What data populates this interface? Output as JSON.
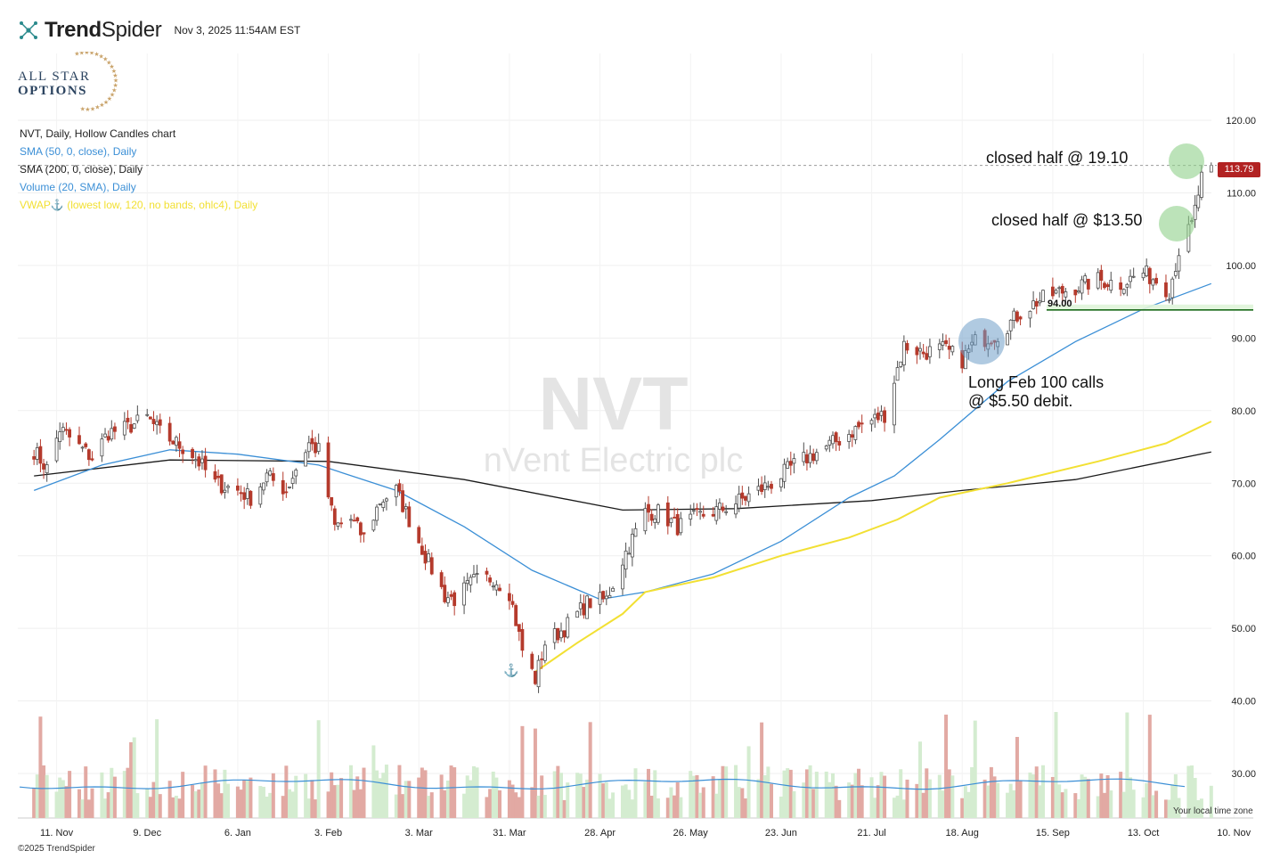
{
  "brand": {
    "name_bold": "Trend",
    "name_rest": "Spider",
    "timestamp": "Nov 3, 2025 11:54AM EST"
  },
  "badge": {
    "line1": "ALL STAR",
    "line2": "OPTIONS"
  },
  "legend": {
    "title": "NVT, Daily, Hollow Candles chart",
    "sma50": "SMA (50, 0, close), Daily",
    "sma200": "SMA (200, 0, close), Daily",
    "volume": "Volume (20, SMA), Daily",
    "vwap_prefix": "VWAP",
    "vwap_suffix": " (lowest low, 120, no bands, ohlc4), Daily"
  },
  "watermark": {
    "symbol": "NVT",
    "name": "nVent Electric plc"
  },
  "annotations": {
    "closed_1910": "closed half @ 19.10",
    "closed_1350": "closed half @ $13.50",
    "long_line1": "Long Feb 100 calls",
    "long_line2": "@ $5.50 debit.",
    "level_label": "94.00"
  },
  "current_price": "113.79",
  "footer": {
    "copyright": "©2025 TrendSpider",
    "timezone": "Your local time zone"
  },
  "colors": {
    "up": "#d4ecd0",
    "down": "#e2a9a3",
    "down_candle": "#b53a2c",
    "up_candle": "#4d4d4d",
    "sma50": "#3b8fd6",
    "sma200": "#1a1a1a",
    "vwap": "#f2e033",
    "support": "#1e6b1e",
    "price_tag": "#b22222"
  },
  "chart_data": {
    "type": "candlestick",
    "title": "NVT, Daily, Hollow Candles chart",
    "x_ticks": [
      "11. Nov",
      "9. Dec",
      "6. Jan",
      "3. Feb",
      "3. Mar",
      "31. Mar",
      "28. Apr",
      "26. May",
      "23. Jun",
      "21. Jul",
      "18. Aug",
      "15. Sep",
      "13. Oct",
      "10. Nov"
    ],
    "y_ticks": [
      120,
      110,
      100,
      90,
      80,
      70,
      60,
      50,
      40,
      30
    ],
    "ylim": [
      28,
      122
    ],
    "price_path": [
      [
        "2024-11-04",
        74.5
      ],
      [
        "2024-11-08",
        72
      ],
      [
        "2024-11-12",
        77.5
      ],
      [
        "2024-11-18",
        75
      ],
      [
        "2024-11-22",
        73.5
      ],
      [
        "2024-11-27",
        77
      ],
      [
        "2024-12-02",
        77.5
      ],
      [
        "2024-12-09",
        79
      ],
      [
        "2024-12-13",
        77
      ],
      [
        "2024-12-18",
        75.5
      ],
      [
        "2024-12-23",
        74
      ],
      [
        "2024-12-30",
        70
      ],
      [
        "2025-01-06",
        69
      ],
      [
        "2025-01-10",
        68
      ],
      [
        "2025-01-15",
        71
      ],
      [
        "2025-01-21",
        69
      ],
      [
        "2025-01-24",
        72
      ],
      [
        "2025-01-28",
        75.5
      ],
      [
        "2025-01-31",
        74.5
      ],
      [
        "2025-02-05",
        64
      ],
      [
        "2025-02-10",
        65
      ],
      [
        "2025-02-14",
        62.5
      ],
      [
        "2025-02-19",
        67.5
      ],
      [
        "2025-02-24",
        69
      ],
      [
        "2025-02-28",
        65
      ],
      [
        "2025-03-05",
        60
      ],
      [
        "2025-03-11",
        54.5
      ],
      [
        "2025-03-14",
        54
      ],
      [
        "2025-03-20",
        56.5
      ],
      [
        "2025-03-26",
        57
      ],
      [
        "2025-03-31",
        55
      ],
      [
        "2025-04-04",
        47
      ],
      [
        "2025-04-08",
        43
      ],
      [
        "2025-04-11",
        48
      ],
      [
        "2025-04-17",
        50
      ],
      [
        "2025-04-24",
        53.5
      ],
      [
        "2025-04-30",
        54
      ],
      [
        "2025-05-06",
        60.5
      ],
      [
        "2025-05-12",
        66
      ],
      [
        "2025-05-16",
        66
      ],
      [
        "2025-05-22",
        64
      ],
      [
        "2025-05-29",
        65.5
      ],
      [
        "2025-06-05",
        66.5
      ],
      [
        "2025-06-12",
        68
      ],
      [
        "2025-06-20",
        70
      ],
      [
        "2025-06-27",
        72.5
      ],
      [
        "2025-07-03",
        74
      ],
      [
        "2025-07-11",
        76
      ],
      [
        "2025-07-18",
        78
      ],
      [
        "2025-07-25",
        79.5
      ],
      [
        "2025-07-31",
        89
      ],
      [
        "2025-08-06",
        88
      ],
      [
        "2025-08-12",
        88.5
      ],
      [
        "2025-08-18",
        87
      ],
      [
        "2025-08-22",
        89.5
      ],
      [
        "2025-08-29",
        90.5
      ],
      [
        "2025-09-05",
        93.5
      ],
      [
        "2025-09-10",
        95
      ],
      [
        "2025-09-15",
        96
      ],
      [
        "2025-09-22",
        97
      ],
      [
        "2025-09-29",
        98
      ],
      [
        "2025-10-06",
        97.5
      ],
      [
        "2025-10-13",
        99
      ],
      [
        "2025-10-17",
        98
      ],
      [
        "2025-10-21",
        96.5
      ],
      [
        "2025-10-24",
        102
      ],
      [
        "2025-10-28",
        105.5
      ],
      [
        "2025-10-31",
        112
      ],
      [
        "2025-11-03",
        113.79
      ]
    ],
    "sma50": [
      [
        "2024-11-04",
        69
      ],
      [
        "2024-11-25",
        72.5
      ],
      [
        "2024-12-16",
        74.6
      ],
      [
        "2025-01-06",
        74
      ],
      [
        "2025-01-31",
        72.5
      ],
      [
        "2025-02-24",
        69
      ],
      [
        "2025-03-17",
        64
      ],
      [
        "2025-04-07",
        58
      ],
      [
        "2025-04-28",
        54
      ],
      [
        "2025-05-12",
        55
      ],
      [
        "2025-06-02",
        57.5
      ],
      [
        "2025-06-23",
        62
      ],
      [
        "2025-07-14",
        68
      ],
      [
        "2025-07-28",
        71
      ],
      [
        "2025-08-11",
        76
      ],
      [
        "2025-09-01",
        84
      ],
      [
        "2025-09-22",
        89.5
      ],
      [
        "2025-10-13",
        94
      ],
      [
        "2025-11-03",
        97.5
      ]
    ],
    "sma200": [
      [
        "2024-11-04",
        71
      ],
      [
        "2024-12-16",
        73.2
      ],
      [
        "2025-02-03",
        73
      ],
      [
        "2025-03-17",
        70.5
      ],
      [
        "2025-05-05",
        66.3
      ],
      [
        "2025-06-09",
        66.5
      ],
      [
        "2025-07-21",
        67.6
      ],
      [
        "2025-08-18",
        69
      ],
      [
        "2025-09-22",
        70.5
      ],
      [
        "2025-11-03",
        74.3
      ]
    ],
    "vwap": [
      [
        "2025-04-08",
        44
      ],
      [
        "2025-04-21",
        48
      ],
      [
        "2025-05-05",
        52
      ],
      [
        "2025-05-12",
        55
      ],
      [
        "2025-06-02",
        57
      ],
      [
        "2025-06-23",
        60
      ],
      [
        "2025-07-14",
        62.5
      ],
      [
        "2025-07-29",
        65
      ],
      [
        "2025-08-11",
        68
      ],
      [
        "2025-09-01",
        70
      ],
      [
        "2025-09-29",
        73
      ],
      [
        "2025-10-20",
        75.5
      ],
      [
        "2025-11-03",
        78.5
      ]
    ],
    "volume_sma_y": 29.3,
    "support_level": 94.0
  }
}
